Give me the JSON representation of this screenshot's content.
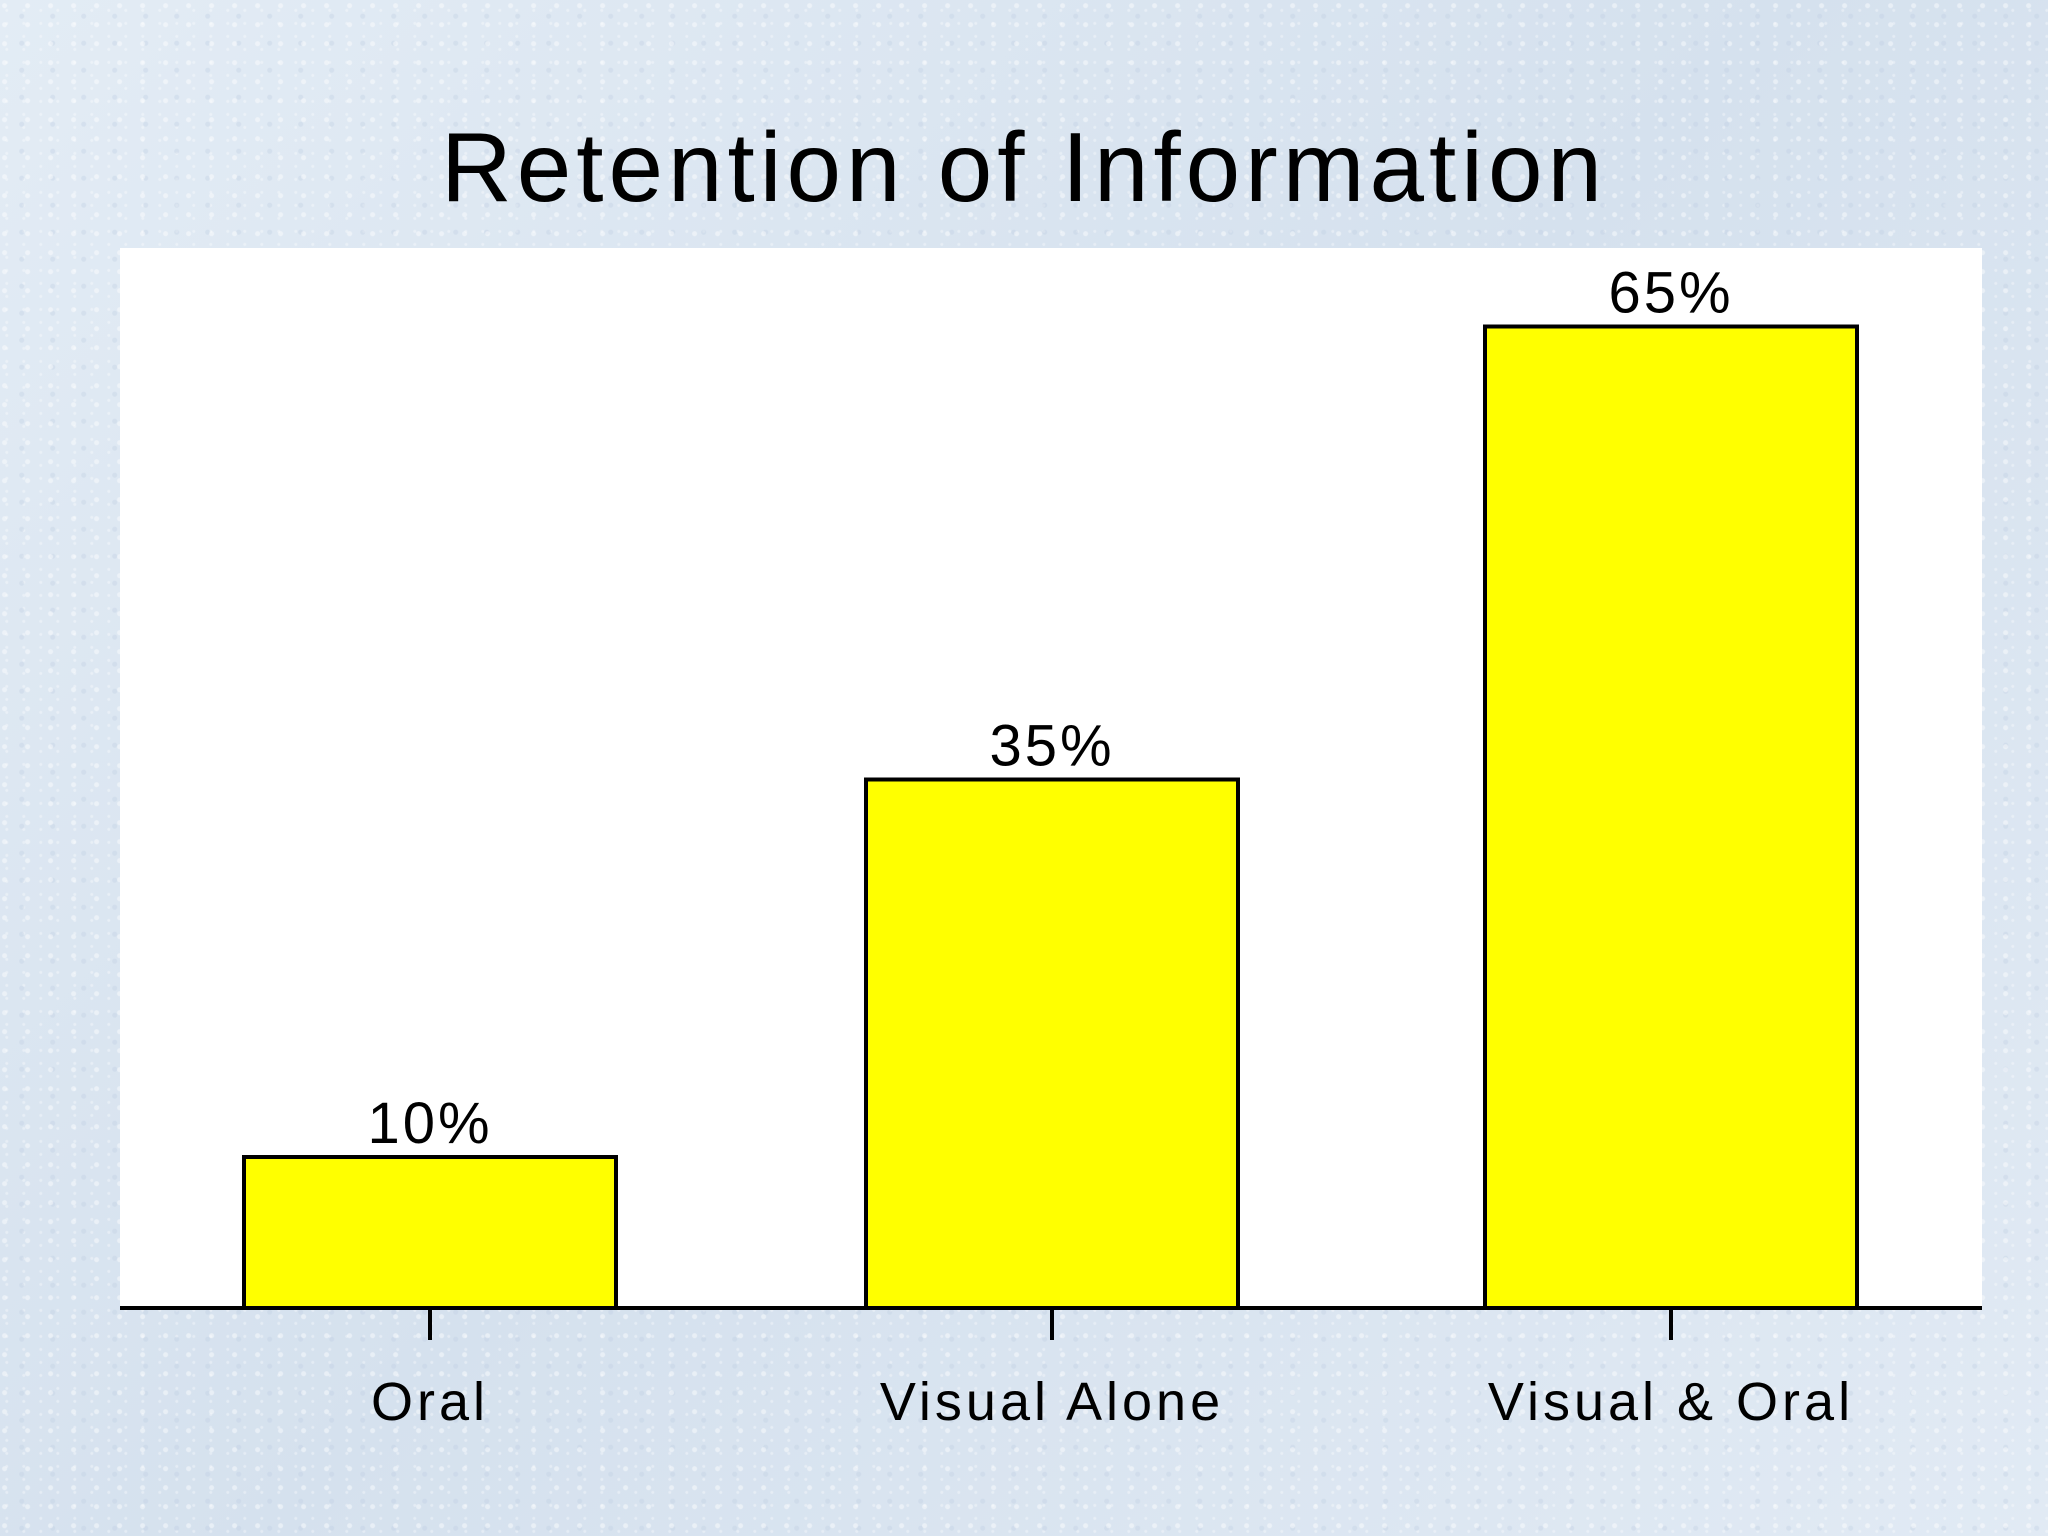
{
  "chart_data": {
    "type": "bar",
    "title": "Retention of Information",
    "categories": [
      "Oral",
      "Visual Alone",
      "Visual & Oral"
    ],
    "values": [
      10,
      35,
      65
    ],
    "value_labels": [
      "10%",
      "35%",
      "65%"
    ],
    "ylim": [
      0,
      70
    ],
    "grid": false,
    "legend": "none",
    "colors": {
      "bar_fill": "#ffff00",
      "bar_stroke": "#000000",
      "plot_background": "#ffffff",
      "slide_background": "#dbe6f1"
    }
  }
}
